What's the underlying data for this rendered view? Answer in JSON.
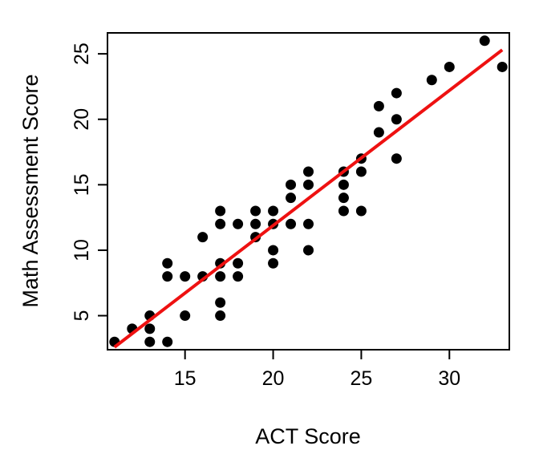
{
  "chart_data": {
    "type": "scatter",
    "xlabel": "ACT Score",
    "ylabel": "Math Assessment Score",
    "xlim": [
      10.6,
      33.4
    ],
    "ylim": [
      2.4,
      26.6
    ],
    "x_ticks": [
      15,
      20,
      25,
      30
    ],
    "y_ticks": [
      5,
      10,
      15,
      20,
      25
    ],
    "grid": false,
    "point_color": "#000000",
    "points": [
      {
        "x": 11,
        "y": 3
      },
      {
        "x": 12,
        "y": 4
      },
      {
        "x": 13,
        "y": 3
      },
      {
        "x": 13,
        "y": 4
      },
      {
        "x": 13,
        "y": 5
      },
      {
        "x": 14,
        "y": 3
      },
      {
        "x": 14,
        "y": 8
      },
      {
        "x": 14,
        "y": 9
      },
      {
        "x": 15,
        "y": 5
      },
      {
        "x": 15,
        "y": 8
      },
      {
        "x": 16,
        "y": 8
      },
      {
        "x": 16,
        "y": 11
      },
      {
        "x": 17,
        "y": 5
      },
      {
        "x": 17,
        "y": 6
      },
      {
        "x": 17,
        "y": 8
      },
      {
        "x": 17,
        "y": 9
      },
      {
        "x": 17,
        "y": 12
      },
      {
        "x": 17,
        "y": 13
      },
      {
        "x": 18,
        "y": 8
      },
      {
        "x": 18,
        "y": 9
      },
      {
        "x": 18,
        "y": 12
      },
      {
        "x": 19,
        "y": 11
      },
      {
        "x": 19,
        "y": 12
      },
      {
        "x": 19,
        "y": 13
      },
      {
        "x": 20,
        "y": 9
      },
      {
        "x": 20,
        "y": 10
      },
      {
        "x": 20,
        "y": 12
      },
      {
        "x": 20,
        "y": 13
      },
      {
        "x": 21,
        "y": 12
      },
      {
        "x": 21,
        "y": 14
      },
      {
        "x": 21,
        "y": 15
      },
      {
        "x": 22,
        "y": 10
      },
      {
        "x": 22,
        "y": 12
      },
      {
        "x": 22,
        "y": 15
      },
      {
        "x": 22,
        "y": 16
      },
      {
        "x": 24,
        "y": 13
      },
      {
        "x": 24,
        "y": 14
      },
      {
        "x": 24,
        "y": 15
      },
      {
        "x": 24,
        "y": 16
      },
      {
        "x": 25,
        "y": 13
      },
      {
        "x": 25,
        "y": 16
      },
      {
        "x": 25,
        "y": 17
      },
      {
        "x": 26,
        "y": 19
      },
      {
        "x": 26,
        "y": 21
      },
      {
        "x": 27,
        "y": 17
      },
      {
        "x": 27,
        "y": 20
      },
      {
        "x": 27,
        "y": 22
      },
      {
        "x": 29,
        "y": 23
      },
      {
        "x": 30,
        "y": 24
      },
      {
        "x": 32,
        "y": 26
      },
      {
        "x": 33,
        "y": 24
      }
    ],
    "fit_line": {
      "color": "#ee1111",
      "x": [
        11,
        33
      ],
      "y": [
        2.6,
        25.3
      ]
    }
  }
}
